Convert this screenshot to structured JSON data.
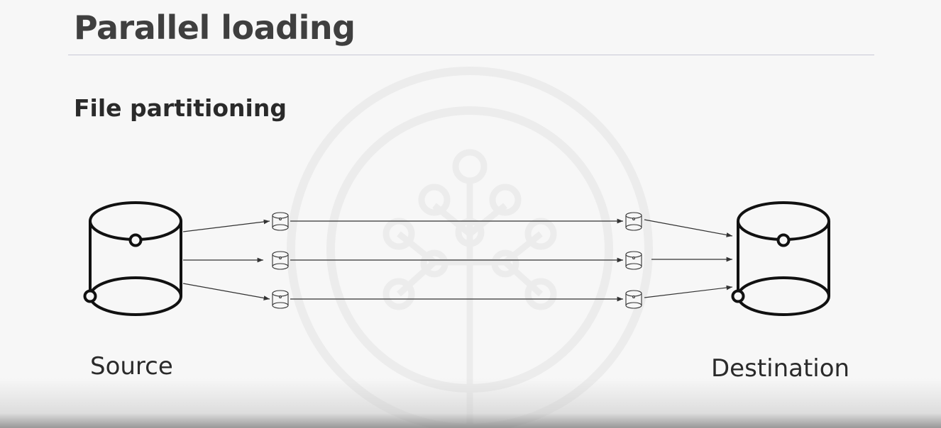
{
  "slide": {
    "title": "Parallel loading",
    "subtitle": "File partitioning",
    "source_label": "Source",
    "destination_label": "Destination",
    "watermark_icon": "tree-circle-logo-icon"
  },
  "diagram": {
    "nodes": [
      {
        "id": "source",
        "kind": "database",
        "label": "Source"
      },
      {
        "id": "partition-source-1",
        "kind": "file"
      },
      {
        "id": "partition-source-2",
        "kind": "file"
      },
      {
        "id": "partition-source-3",
        "kind": "file"
      },
      {
        "id": "partition-dest-1",
        "kind": "file"
      },
      {
        "id": "partition-dest-2",
        "kind": "file"
      },
      {
        "id": "partition-dest-3",
        "kind": "file"
      },
      {
        "id": "destination",
        "kind": "database",
        "label": "Destination"
      }
    ],
    "edges": [
      {
        "from": "source",
        "to": "partition-source-1"
      },
      {
        "from": "source",
        "to": "partition-source-2"
      },
      {
        "from": "source",
        "to": "partition-source-3"
      },
      {
        "from": "partition-source-1",
        "to": "partition-dest-1"
      },
      {
        "from": "partition-source-2",
        "to": "partition-dest-2"
      },
      {
        "from": "partition-source-3",
        "to": "partition-dest-3"
      },
      {
        "from": "partition-dest-1",
        "to": "destination"
      },
      {
        "from": "partition-dest-2",
        "to": "destination"
      },
      {
        "from": "partition-dest-3",
        "to": "destination"
      }
    ]
  }
}
